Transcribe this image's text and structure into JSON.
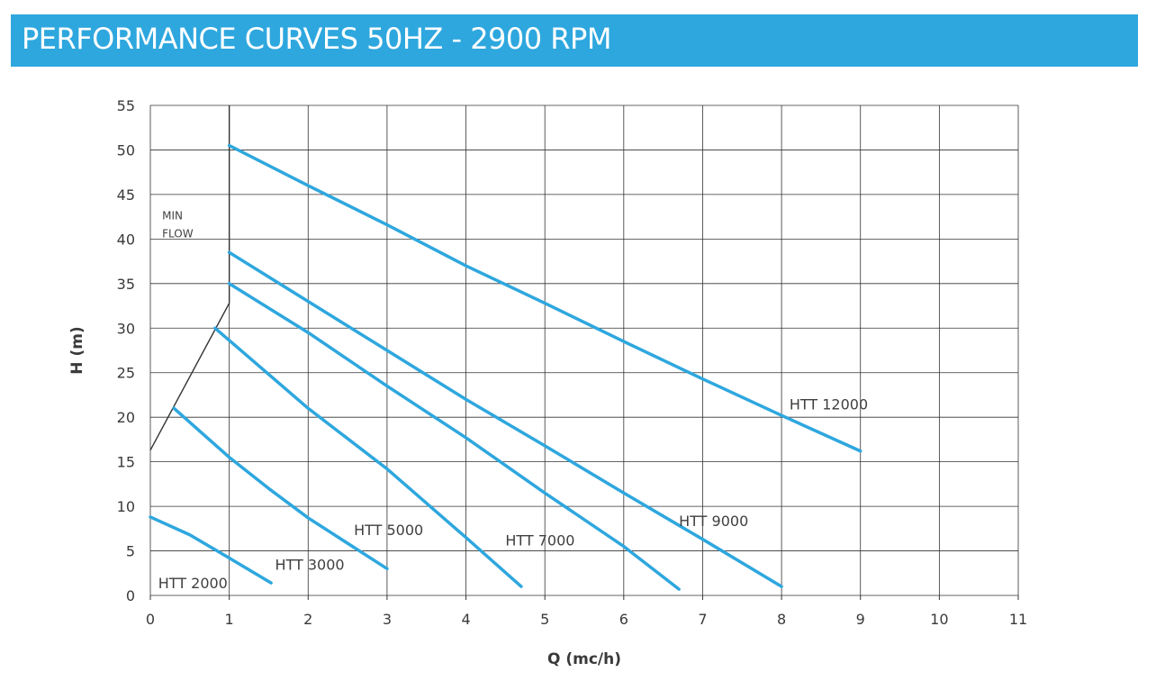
{
  "header": {
    "title": "PERFORMANCE CURVES 50HZ - 2900 RPM"
  },
  "colors": {
    "banner": "#2ea7de",
    "curve": "#2ea7de",
    "min_flow_line": "#333333",
    "grid": "#333333"
  },
  "chart_data": {
    "type": "line",
    "title": "",
    "xlabel": "Q (mc/h)",
    "ylabel": "H (m)",
    "xlim": [
      0,
      11
    ],
    "ylim": [
      0,
      55
    ],
    "xticks": [
      0,
      1,
      2,
      3,
      4,
      5,
      6,
      7,
      8,
      9,
      10,
      11
    ],
    "yticks": [
      0,
      5,
      10,
      15,
      20,
      25,
      30,
      35,
      40,
      45,
      50,
      55
    ],
    "grid": true,
    "legend": "none",
    "series": [
      {
        "name": "HTT 2000",
        "points": [
          [
            0,
            8.8
          ],
          [
            0.5,
            6.8
          ],
          [
            1,
            4.2
          ],
          [
            1.53,
            1.4
          ]
        ],
        "label_at": [
          0.1,
          1.4
        ]
      },
      {
        "name": "HTT 3000",
        "points": [
          [
            0.3,
            21
          ],
          [
            1,
            15.5
          ],
          [
            1.5,
            12
          ],
          [
            2,
            8.7
          ],
          [
            3,
            3
          ]
        ],
        "label_at": [
          1.58,
          3.5
        ]
      },
      {
        "name": "HTT 5000",
        "points": [
          [
            0.82,
            30
          ],
          [
            2,
            21
          ],
          [
            3,
            14.2
          ],
          [
            4,
            6.5
          ],
          [
            4.7,
            1
          ]
        ],
        "label_at": [
          2.58,
          7.4
        ]
      },
      {
        "name": "HTT 7000",
        "points": [
          [
            1,
            35
          ],
          [
            2,
            29.5
          ],
          [
            3,
            23.5
          ],
          [
            4,
            17.7
          ],
          [
            5,
            11.5
          ],
          [
            6,
            5.5
          ],
          [
            6.7,
            0.7
          ]
        ],
        "label_at": [
          4.5,
          6.2
        ]
      },
      {
        "name": "HTT 9000",
        "points": [
          [
            1,
            38.5
          ],
          [
            2,
            33
          ],
          [
            3,
            27.5
          ],
          [
            4,
            22
          ],
          [
            5,
            16.8
          ],
          [
            6,
            11.5
          ],
          [
            7,
            6.3
          ],
          [
            8,
            1
          ]
        ],
        "label_at": [
          6.7,
          8.4
        ]
      },
      {
        "name": "HTT 12000",
        "points": [
          [
            1,
            50.5
          ],
          [
            2,
            46
          ],
          [
            3,
            41.6
          ],
          [
            4,
            37
          ],
          [
            5,
            32.8
          ],
          [
            6,
            28.5
          ],
          [
            7,
            24.3
          ],
          [
            8,
            20.2
          ],
          [
            9,
            16.2
          ]
        ],
        "label_at": [
          8.1,
          21.5
        ]
      }
    ],
    "min_flow": {
      "label_lines": [
        "MIN",
        "FLOW"
      ],
      "label_at": [
        0.15,
        42.2
      ],
      "points": [
        [
          0,
          16.3
        ],
        [
          1,
          32.8
        ],
        [
          1,
          55
        ]
      ]
    }
  }
}
